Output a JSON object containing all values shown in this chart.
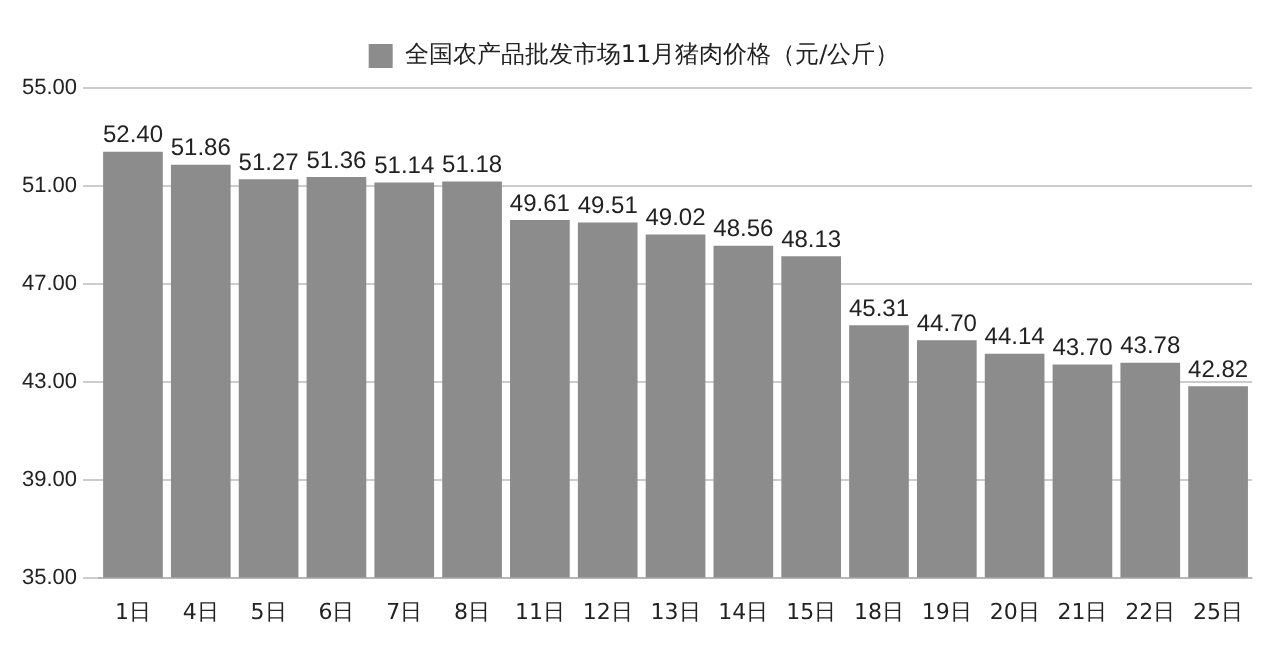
{
  "chart_data": {
    "type": "bar",
    "categories": [
      "1日",
      "4日",
      "5日",
      "6日",
      "7日",
      "8日",
      "11日",
      "12日",
      "13日",
      "14日",
      "15日",
      "18日",
      "19日",
      "20日",
      "21日",
      "22日",
      "25日"
    ],
    "series": [
      {
        "name": "全国农产品批发市场11月猪肉价格（元/公斤）",
        "color": "#8c8c8c",
        "values": [
          52.4,
          51.86,
          51.27,
          51.36,
          51.14,
          51.18,
          49.61,
          49.51,
          49.02,
          48.56,
          48.13,
          45.31,
          44.7,
          44.14,
          43.7,
          43.78,
          42.82
        ],
        "value_labels": [
          "52.40",
          "51.86",
          "51.27",
          "51.36",
          "51.14",
          "51.18",
          "49.61",
          "49.51",
          "49.02",
          "48.56",
          "48.13",
          "45.31",
          "44.70",
          "44.14",
          "43.70",
          "43.78",
          "42.82"
        ]
      }
    ],
    "ylim": [
      35,
      55
    ],
    "yticks": [
      {
        "value": 35,
        "label": "35.00"
      },
      {
        "value": 39,
        "label": "39.00"
      },
      {
        "value": 43,
        "label": "43.00"
      },
      {
        "value": 47,
        "label": "47.00"
      },
      {
        "value": 51,
        "label": "51.00"
      },
      {
        "value": 55,
        "label": "55.00"
      }
    ],
    "grid": "y",
    "legend": "top"
  }
}
